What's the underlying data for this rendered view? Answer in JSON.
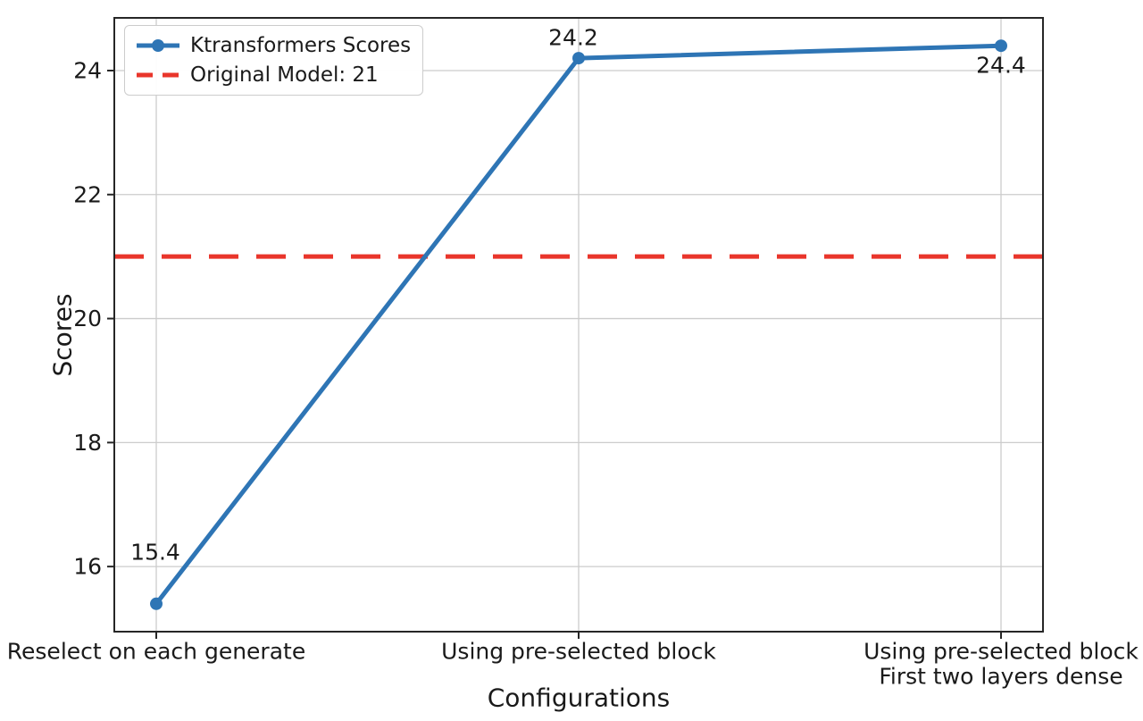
{
  "chart_data": {
    "type": "line",
    "title": "",
    "xlabel": "Configurations",
    "ylabel": "Scores",
    "categories": [
      "Reselect on each generate",
      "Using pre-selected block",
      "Using pre-selected block\nFirst two layers dense"
    ],
    "series": [
      {
        "name": "Ktransformers Scores",
        "values": [
          15.4,
          24.2,
          24.4
        ],
        "color": "#2e75b5",
        "marker": "circle",
        "line_style": "solid"
      }
    ],
    "reference_line": {
      "label": "Original Model: 21",
      "value": 21,
      "color": "#e9352b",
      "line_style": "dashed"
    },
    "point_labels": [
      "15.4",
      "24.2",
      "24.4"
    ],
    "ytick_labels": [
      "16",
      "18",
      "20",
      "22",
      "24"
    ],
    "ytick_values": [
      16,
      18,
      20,
      22,
      24
    ],
    "ylim": [
      14.95,
      24.85
    ],
    "grid": true,
    "legend_position": "upper-left",
    "colors": {
      "grid": "#cccccc",
      "axis": "#262626",
      "text": "#1a1a1a",
      "background": "#ffffff"
    }
  }
}
